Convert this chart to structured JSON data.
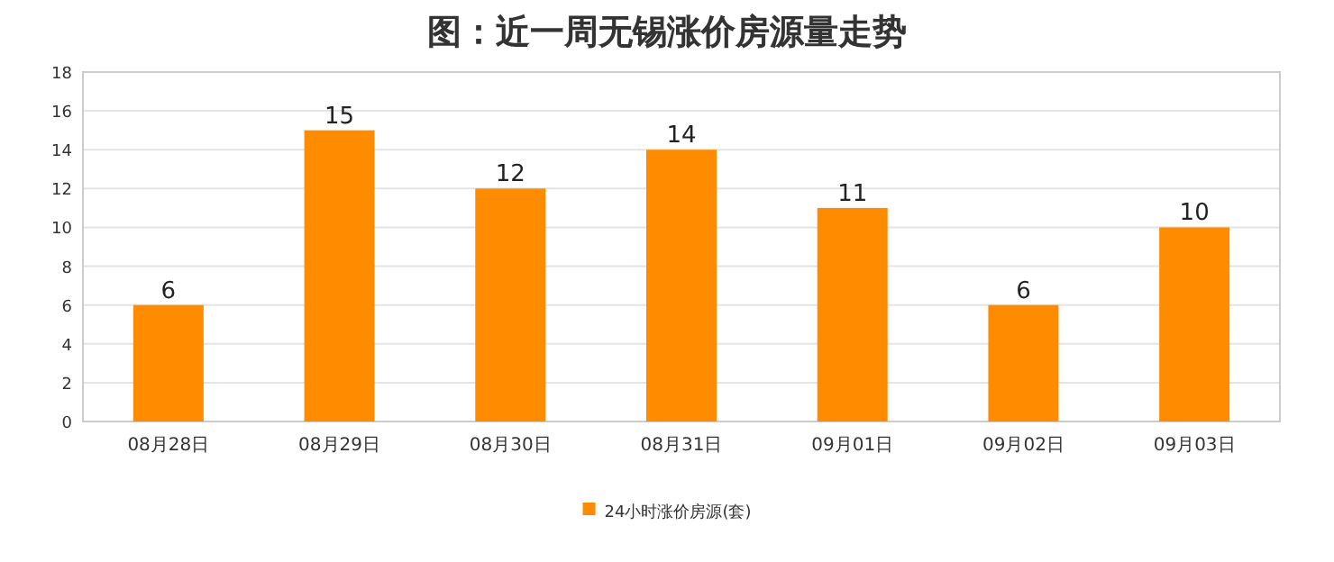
{
  "chart_data": {
    "type": "bar",
    "title": "图：近一周无锡涨价房源量走势",
    "categories": [
      "08月28日",
      "08月29日",
      "08月30日",
      "08月31日",
      "09月01日",
      "09月02日",
      "09月03日"
    ],
    "series": [
      {
        "name": "24小时涨价房源(套)",
        "color": "#ff8c00",
        "values": [
          6,
          15,
          12,
          14,
          11,
          6,
          10
        ]
      }
    ],
    "ylim": [
      0,
      18
    ],
    "yticks": [
      0,
      2,
      4,
      6,
      8,
      10,
      12,
      14,
      16,
      18
    ],
    "grid": "y",
    "legend": "bottom",
    "data_labels": true
  }
}
